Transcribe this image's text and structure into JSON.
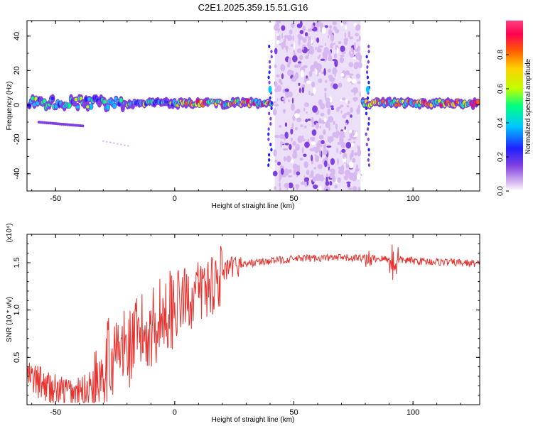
{
  "title": "C2E1.2025.359.15.51.G16",
  "chart_data": [
    {
      "type": "heatmap",
      "name": "spectrogram",
      "title": "C2E1.2025.359.15.51.G16",
      "xlabel": "Height of straight line (km)",
      "ylabel": "Frequency (Hz)",
      "xlim": [
        -62,
        128
      ],
      "ylim": [
        -50,
        49
      ],
      "xticks": [
        -50,
        0,
        50,
        100
      ],
      "xtick_labels": [
        "-50",
        "0",
        "50",
        "100"
      ],
      "yticks": [
        -40,
        -20,
        0,
        20,
        40
      ],
      "ytick_labels": [
        "-40",
        "-20",
        "0",
        "20",
        "40"
      ],
      "colorbar": {
        "label": "Normalized spectral amplitude",
        "range": [
          0,
          1
        ],
        "ticks": [
          0,
          0.2,
          0.4,
          0.6,
          0.8
        ],
        "tick_labels": [
          "0.0",
          "0.2",
          "0.4",
          "0.6",
          "0.8"
        ],
        "colors": [
          "#ffffff",
          "#d8b8f0",
          "#8040e0",
          "#2020ff",
          "#00c8ff",
          "#00ff80",
          "#c0ff00",
          "#ffd000",
          "#ff6000",
          "#ff0050",
          "#ff4080"
        ]
      },
      "features": {
        "main_line_center_hz": 1,
        "noise_region_km": [
          42,
          78
        ],
        "edge_spikes_km": [
          40,
          81
        ]
      }
    },
    {
      "type": "line",
      "name": "snr",
      "xlabel": "Height of straight line (km)",
      "ylabel": "SNR (10 * v/v)",
      "multiplier": "(x10⁴)",
      "xlim": [
        -62,
        128
      ],
      "ylim": [
        0,
        1.8
      ],
      "xticks": [
        -50,
        0,
        50,
        100
      ],
      "xtick_labels": [
        "-50",
        "0",
        "50",
        "100"
      ],
      "yticks": [
        0.5,
        1.0,
        1.5
      ],
      "ytick_labels": [
        "0.5",
        "1.0",
        "1.5"
      ],
      "color": "#e8322e",
      "envelope": {
        "x": [
          -62,
          -50,
          -40,
          -35,
          -30,
          -20,
          -15,
          -10,
          -5,
          0,
          5,
          10,
          15,
          20,
          25,
          30,
          40,
          50,
          60,
          70,
          80,
          88,
          90,
          92,
          95,
          100,
          110,
          120,
          128
        ],
        "y": [
          0.3,
          0.15,
          0.12,
          0.2,
          0.45,
          0.6,
          0.7,
          0.82,
          0.95,
          1.05,
          1.12,
          1.18,
          1.28,
          1.38,
          1.46,
          1.49,
          1.52,
          1.54,
          1.55,
          1.55,
          1.55,
          1.54,
          1.53,
          1.53,
          1.53,
          1.52,
          1.51,
          1.5,
          1.49
        ]
      }
    }
  ]
}
